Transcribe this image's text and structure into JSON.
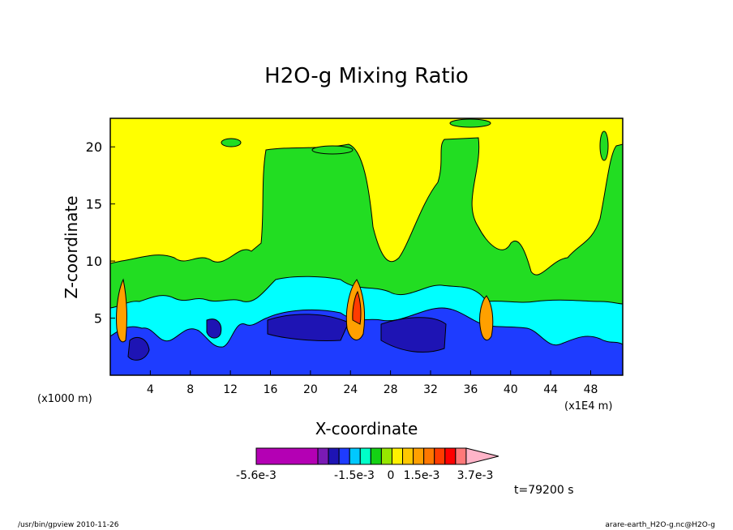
{
  "chart_data": {
    "type": "heatmap",
    "title": "H2O-g Mixing Ratio",
    "xlabel": "X-coordinate",
    "ylabel": "Z-coordinate",
    "x_unit_left": "(x1000 m)",
    "x_unit_right": "(x1E4 m)",
    "x_ticks": [
      "4",
      "8",
      "12",
      "16",
      "20",
      "24",
      "28",
      "32",
      "36",
      "40",
      "44",
      "48"
    ],
    "y_ticks": [
      "5",
      "10",
      "15",
      "20"
    ],
    "xlim": [
      0,
      51.2
    ],
    "ylim": [
      0,
      22.5
    ],
    "colorbar": {
      "colors": [
        "#b400b4",
        "#7a1ab4",
        "#1e14b4",
        "#1e3cff",
        "#00c8ff",
        "#00ffc8",
        "#14d214",
        "#96e600",
        "#fff000",
        "#ffc800",
        "#ffa000",
        "#ff7800",
        "#ff3c00",
        "#ff0000",
        "#ff7878",
        "#ffb4c8"
      ],
      "tick_labels": [
        "-5.6e-3",
        "-1.5e-3",
        "0",
        "1.5e-3",
        "3.7e-3"
      ]
    },
    "time_label": "t=79200 s"
  },
  "footer": {
    "left": "/usr/bin/gpview   2010-11-26",
    "right": "arare-earth_H2O-g.nc@H2O-g"
  }
}
